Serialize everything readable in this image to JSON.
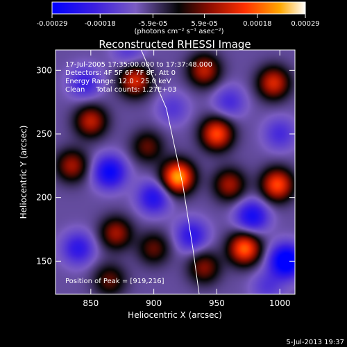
{
  "chart_data": {
    "type": "heatmap",
    "title": "Reconstructed RHESSI Image",
    "xlabel": "Heliocentric X (arcsec)",
    "ylabel": "Heliocentric Y (arcsec)",
    "xlim": [
      822,
      1012
    ],
    "ylim": [
      124,
      316
    ],
    "xticks": [
      850,
      900,
      950,
      1000
    ],
    "yticks": [
      150,
      200,
      250,
      300
    ],
    "colorbar": {
      "min": -0.00029,
      "max": 0.00029,
      "ticks": [
        {
          "value": -0.00029,
          "label": "-0.00029"
        },
        {
          "value": -0.00018,
          "label": "-0.00018"
        },
        {
          "value": -5.9e-05,
          "label": "-5.9e-05"
        },
        {
          "value": 5.9e-05,
          "label": "5.9e-05"
        },
        {
          "value": 0.00018,
          "label": "0.00018"
        },
        {
          "value": 0.00029,
          "label": "0.00029"
        }
      ],
      "units_label": "(photons cm⁻² s⁻¹ asec⁻²)"
    },
    "annotations": [
      "17-Jul-2005 17:35:00.000 to 17:37:48.000",
      "Detectors: 4F 5F 6F 7F 8F, Att 0",
      "Energy Range: 12.0 - 25.0 keV",
      "Clean     Total counts: 1.27E+03"
    ],
    "peak_label": "Position of Peak = [919,216]",
    "peak": {
      "x": 919,
      "y": 216,
      "value": 0.00029
    },
    "sources": [
      {
        "x": 919,
        "y": 216,
        "value": 0.00029
      },
      {
        "x": 950,
        "y": 250,
        "value": 0.00022
      },
      {
        "x": 940,
        "y": 300,
        "value": 0.00016
      },
      {
        "x": 995,
        "y": 290,
        "value": 0.00018
      },
      {
        "x": 998,
        "y": 210,
        "value": 0.00022
      },
      {
        "x": 972,
        "y": 160,
        "value": 0.00024
      },
      {
        "x": 960,
        "y": 210,
        "value": 0.00014
      },
      {
        "x": 885,
        "y": 292,
        "value": 0.00018
      },
      {
        "x": 850,
        "y": 260,
        "value": 0.00016
      },
      {
        "x": 835,
        "y": 225,
        "value": 0.00014
      },
      {
        "x": 870,
        "y": 172,
        "value": 0.00014
      },
      {
        "x": 900,
        "y": 160,
        "value": 0.0001
      },
      {
        "x": 865,
        "y": 135,
        "value": 0.0001
      },
      {
        "x": 940,
        "y": 145,
        "value": 0.00012
      },
      {
        "x": 895,
        "y": 240,
        "value": 0.0001
      },
      {
        "x": 1005,
        "y": 150,
        "value": -0.00029
      },
      {
        "x": 978,
        "y": 185,
        "value": -0.0002
      },
      {
        "x": 865,
        "y": 220,
        "value": -0.00022
      },
      {
        "x": 900,
        "y": 200,
        "value": -0.00018
      },
      {
        "x": 845,
        "y": 290,
        "value": -0.00014
      },
      {
        "x": 930,
        "y": 170,
        "value": -0.00016
      },
      {
        "x": 1000,
        "y": 250,
        "value": -0.00012
      },
      {
        "x": 960,
        "y": 275,
        "value": -0.00012
      },
      {
        "x": 915,
        "y": 270,
        "value": -0.0001
      },
      {
        "x": 840,
        "y": 160,
        "value": -0.00016
      },
      {
        "x": 990,
        "y": 130,
        "value": -0.0001
      },
      {
        "x": 880,
        "y": 315,
        "value": -0.0001
      }
    ],
    "limb_line": [
      {
        "x": 890,
        "y": 316
      },
      {
        "x": 910,
        "y": 270
      },
      {
        "x": 923,
        "y": 210
      },
      {
        "x": 931,
        "y": 160
      },
      {
        "x": 936,
        "y": 124
      }
    ]
  },
  "footer_timestamp": "5-Jul-2013 19:37"
}
